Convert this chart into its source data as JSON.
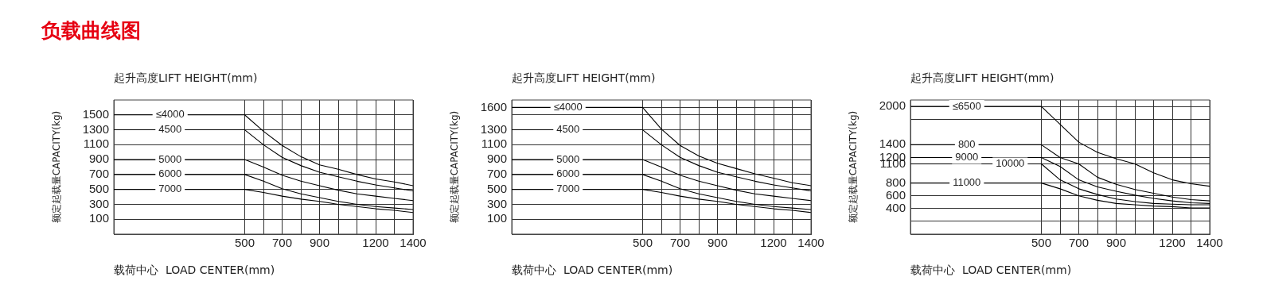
{
  "chart_data": [
    {
      "type": "line",
      "title": "负载曲线图",
      "legend_title": "起升高度LIFT HEIGHT(mm)",
      "xlabel": "载荷中心  LOAD CENTER(mm)",
      "ylabel": "额定起载量CAPACITY(kg)",
      "x": [
        -200,
        500,
        600,
        700,
        800,
        900,
        1000,
        1100,
        1200,
        1300,
        1400
      ],
      "series": [
        {
          "name": "≤4000",
          "color": "#000000",
          "values": [
            1500,
            1500,
            1280,
            1090,
            940,
            830,
            770,
            700,
            640,
            600,
            550
          ]
        },
        {
          "name": "4500",
          "color": "#000000",
          "values": [
            1300,
            1300,
            1100,
            930,
            820,
            730,
            670,
            610,
            560,
            520,
            480
          ]
        },
        {
          "name": "5000",
          "color": "#000000",
          "values": [
            900,
            900,
            800,
            690,
            610,
            550,
            490,
            440,
            410,
            380,
            350
          ]
        },
        {
          "name": "6000",
          "color": "#000000",
          "values": [
            700,
            700,
            610,
            510,
            440,
            390,
            340,
            300,
            270,
            250,
            230
          ]
        },
        {
          "name": "7000",
          "color": "#000000",
          "values": [
            500,
            500,
            460,
            410,
            370,
            340,
            300,
            270,
            240,
            220,
            190
          ]
        }
      ],
      "xlim": [
        -200,
        1400
      ],
      "xticks": [
        500,
        {
          "value": 600,
          "label": null
        },
        700,
        {
          "value": 800,
          "label": null
        },
        900,
        {
          "value": 1000,
          "label": null
        },
        {
          "value": 1100,
          "label": null
        },
        1200,
        {
          "value": 1300,
          "label": null
        },
        1400
      ],
      "ylim": [
        -100,
        1700
      ],
      "yticks": [
        100,
        300,
        500,
        700,
        900,
        1100,
        1300,
        1500
      ],
      "grid": true,
      "legend": false,
      "marker": "none"
    },
    {
      "type": "line",
      "legend_title": "起升高度LIFT HEIGHT(mm)",
      "xlabel": "载荷中心  LOAD CENTER(mm)",
      "ylabel": "额定起载量CAPACITY(kg)",
      "x": [
        -200,
        500,
        600,
        700,
        800,
        900,
        1000,
        1100,
        1200,
        1300,
        1400
      ],
      "series": [
        {
          "name": "≤4000",
          "color": "#000000",
          "values": [
            1600,
            1600,
            1310,
            1090,
            950,
            850,
            780,
            710,
            650,
            590,
            550
          ]
        },
        {
          "name": "4500",
          "color": "#000000",
          "values": [
            1300,
            1300,
            1100,
            930,
            820,
            730,
            670,
            610,
            560,
            520,
            480
          ]
        },
        {
          "name": "5000",
          "color": "#000000",
          "values": [
            900,
            900,
            800,
            690,
            610,
            550,
            490,
            440,
            410,
            380,
            350
          ]
        },
        {
          "name": "6000",
          "color": "#000000",
          "values": [
            700,
            700,
            610,
            510,
            440,
            390,
            340,
            300,
            270,
            250,
            230
          ]
        },
        {
          "name": "7000",
          "color": "#000000",
          "values": [
            500,
            500,
            460,
            410,
            370,
            340,
            300,
            270,
            240,
            220,
            190
          ]
        }
      ],
      "xlim": [
        -200,
        1400
      ],
      "xticks": [
        500,
        {
          "value": 600,
          "label": null
        },
        700,
        {
          "value": 800,
          "label": null
        },
        900,
        {
          "value": 1000,
          "label": null
        },
        {
          "value": 1100,
          "label": null
        },
        1200,
        {
          "value": 1300,
          "label": null
        },
        1400
      ],
      "ylim": [
        -100,
        1700
      ],
      "yticks": [
        100,
        300,
        500,
        700,
        900,
        1100,
        1300,
        {
          "value": 1500,
          "label": null
        },
        1600
      ],
      "grid": true,
      "legend": false,
      "marker": "none"
    },
    {
      "type": "line",
      "legend_title": "起升高度LIFT HEIGHT(mm)",
      "xlabel": "载荷中心  LOAD CENTER(mm)",
      "ylabel": "额定起载量CAPACITY(kg)",
      "x": [
        -200,
        500,
        600,
        700,
        800,
        900,
        1000,
        1100,
        1200,
        1300,
        1400
      ],
      "series": [
        {
          "name": "≤6500",
          "color": "#000000",
          "values": [
            2000,
            2000,
            1720,
            1440,
            1280,
            1180,
            1100,
            960,
            850,
            790,
            750
          ]
        },
        {
          "name": "800",
          "color": "#000000",
          "values": [
            1400,
            1400,
            1200,
            1100,
            890,
            780,
            700,
            640,
            580,
            540,
            520
          ]
        },
        {
          "name": "9000",
          "color": "#000000",
          "values": [
            1200,
            1200,
            1060,
            850,
            740,
            670,
            610,
            560,
            520,
            490,
            480
          ]
        },
        {
          "name": "10000",
          "color": "#000000",
          "values": [
            1100,
            1100,
            850,
            710,
            620,
            550,
            510,
            480,
            470,
            460,
            460
          ]
        },
        {
          "name": "11000",
          "color": "#000000",
          "values": [
            800,
            800,
            710,
            600,
            530,
            480,
            460,
            440,
            430,
            410,
            410
          ]
        }
      ],
      "xlim": [
        -200,
        1400
      ],
      "xticks": [
        500,
        {
          "value": 600,
          "label": null
        },
        700,
        {
          "value": 800,
          "label": null
        },
        900,
        {
          "value": 1000,
          "label": null
        },
        {
          "value": 1100,
          "label": null
        },
        1200,
        {
          "value": 1300,
          "label": null
        },
        1400
      ],
      "ylim": [
        0,
        2100
      ],
      "yticks": [
        {
          "value": 200,
          "label": null
        },
        400,
        600,
        800,
        1100,
        1200,
        1400,
        {
          "value": 1800,
          "label": null
        },
        2000
      ],
      "grid": true,
      "legend": false,
      "marker": "none"
    }
  ]
}
